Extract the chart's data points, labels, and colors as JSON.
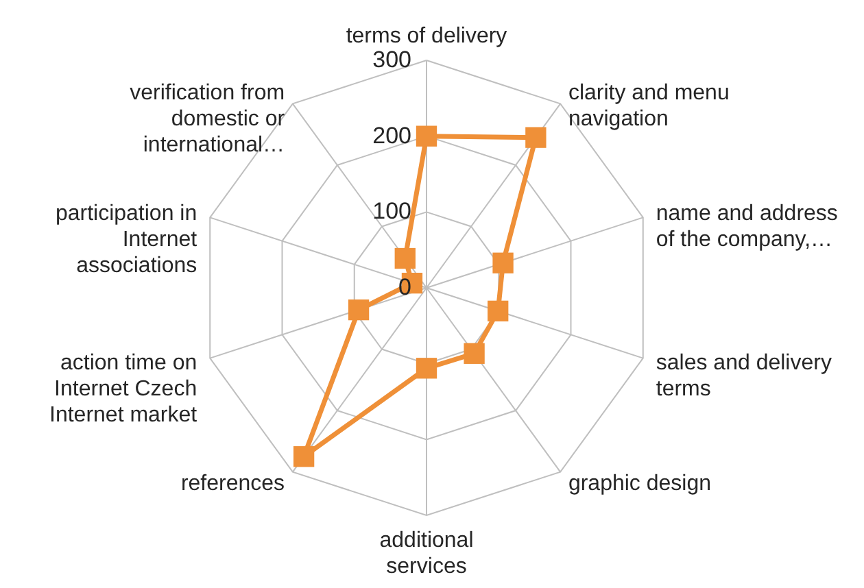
{
  "chart_data": {
    "type": "radar",
    "categories": [
      "terms of delivery",
      "clarity and menu navigation",
      "name and address of the company,…",
      "sales and delivery terms",
      "graphic design",
      "additional services",
      "references",
      "action time on Internet Czech Internet market",
      "participation in Internet associations",
      "verification from domestic or international…"
    ],
    "series": [
      {
        "color": "#ef9038",
        "values": [
          200,
          245,
          106,
          99,
          107,
          106,
          275,
          94,
          20,
          48
        ]
      }
    ],
    "ylim": [
      0,
      300
    ],
    "yticks": [
      0,
      100,
      200,
      300
    ],
    "grid": true,
    "marker": "square",
    "line_style": "solid"
  }
}
